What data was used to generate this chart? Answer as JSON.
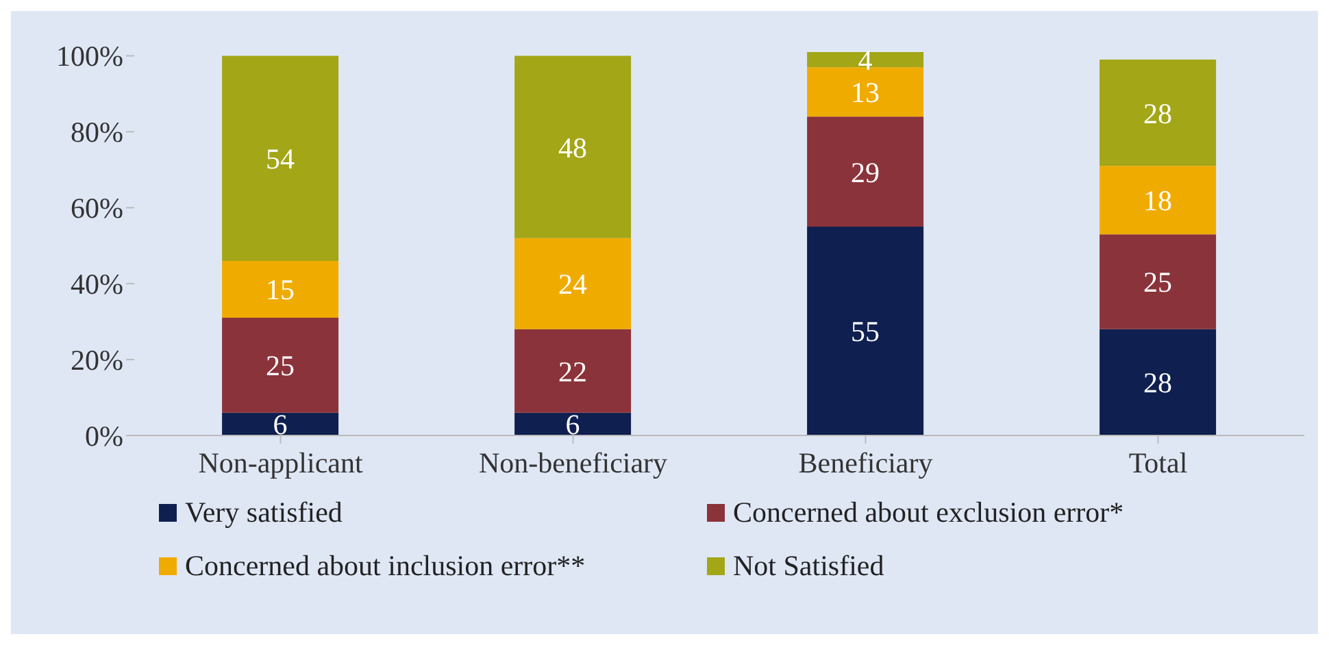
{
  "chart_data": {
    "type": "bar",
    "stacked": true,
    "categories": [
      "Non-applicant",
      "Non-beneficiary",
      "Beneficiary",
      "Total"
    ],
    "series": [
      {
        "name": "Very satisfied",
        "color": "#0f1f4f",
        "values": [
          6,
          6,
          55,
          28
        ]
      },
      {
        "name": "Concerned about exclusion error*",
        "color": "#8b333a",
        "values": [
          25,
          22,
          29,
          25
        ]
      },
      {
        "name": "Concerned about inclusion error**",
        "color": "#f0ab00",
        "values": [
          15,
          24,
          13,
          18
        ]
      },
      {
        "name": "Not Satisfied",
        "color": "#a3a617",
        "values": [
          54,
          48,
          4,
          28
        ]
      }
    ],
    "ylim": [
      0,
      101
    ],
    "yticks": [
      {
        "value": 0,
        "label": "0%"
      },
      {
        "value": 20,
        "label": "20%"
      },
      {
        "value": 40,
        "label": "40%"
      },
      {
        "value": 60,
        "label": "60%"
      },
      {
        "value": 80,
        "label": "80%"
      },
      {
        "value": 100,
        "label": "100%"
      }
    ],
    "grid": false,
    "legend": "bottom",
    "data_labels": true
  }
}
